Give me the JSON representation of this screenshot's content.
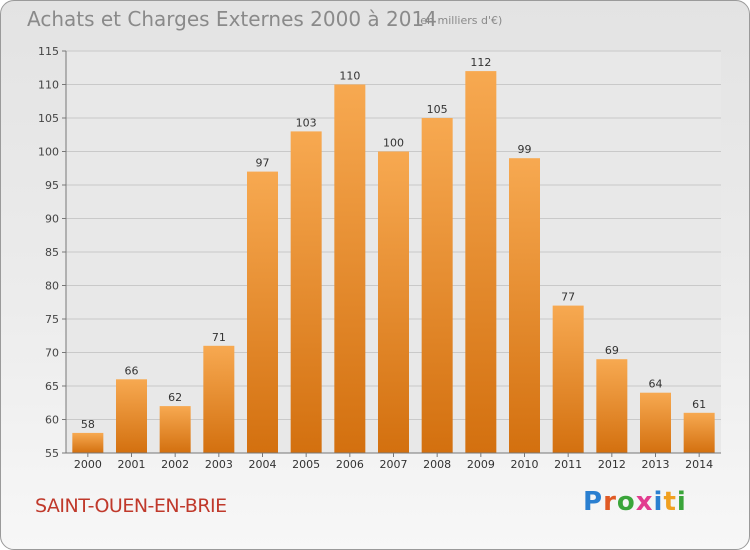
{
  "header": {
    "title": "Achats et Charges Externes 2000 à 2014",
    "unit": "(en milliers d'€)"
  },
  "footer": {
    "commune": "SAINT-OUEN-EN-BRIE",
    "brand": "Proxiti"
  },
  "colors": {
    "bar_light": "#f7a951",
    "bar_dark": "#d3700f",
    "commune": "#c0392b",
    "brand_letters": [
      "#2a7fd0",
      "#e05a24",
      "#3aa53a",
      "#e23b8f",
      "#2a7fd0",
      "#f0a020",
      "#3aa53a"
    ]
  },
  "chart_data": {
    "type": "bar",
    "title": "Achats et Charges Externes 2000 à 2014",
    "subtitle": "(en milliers d'€)",
    "xlabel": "",
    "ylabel": "",
    "categories": [
      "2000",
      "2001",
      "2002",
      "2003",
      "2004",
      "2005",
      "2006",
      "2007",
      "2008",
      "2009",
      "2010",
      "2011",
      "2012",
      "2013",
      "2014"
    ],
    "values": [
      58,
      66,
      62,
      71,
      97,
      103,
      110,
      100,
      105,
      112,
      99,
      77,
      69,
      64,
      61
    ],
    "ylim": [
      55,
      115
    ],
    "yticks": [
      55,
      60,
      65,
      70,
      75,
      80,
      85,
      90,
      95,
      100,
      105,
      110,
      115
    ],
    "grid": true,
    "legend": "none"
  }
}
